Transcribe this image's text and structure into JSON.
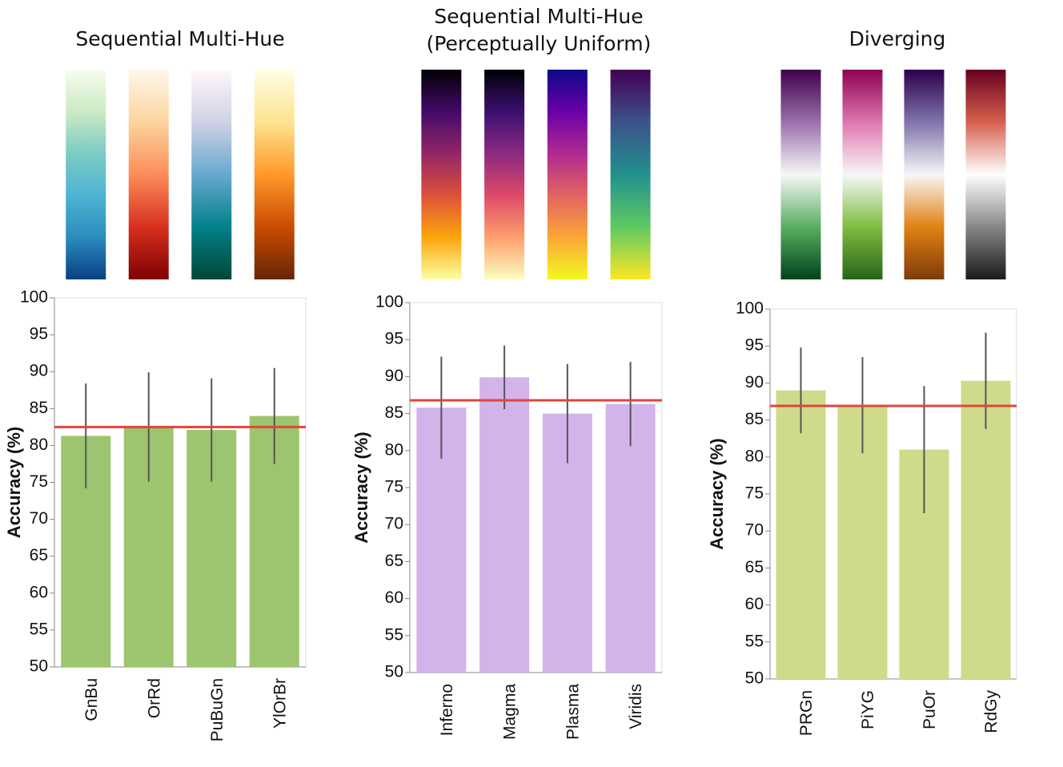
{
  "chart_data": [
    {
      "type": "bar",
      "title": "Sequential Multi-Hue",
      "y_label": "Accuracy (%)",
      "categories": [
        "GnBu",
        "OrRd",
        "PuBuGn",
        "YlOrBr"
      ],
      "values": [
        81.3,
        82.5,
        82.1,
        84.0
      ],
      "errors": [
        7.1,
        7.4,
        7.0,
        6.5
      ],
      "reference_line": 82.5,
      "reference_color": "#e0453a",
      "color": "#9dc46f",
      "swatch_colors": [
        [
          "#f7fcf0",
          "#ccebc5",
          "#7bccc4",
          "#4eb3d3",
          "#2b8cbe",
          "#084081"
        ],
        [
          "#fff7ec",
          "#fdd49e",
          "#fc8d59",
          "#d7301f",
          "#7f0000"
        ],
        [
          "#fff7fb",
          "#d0d1e6",
          "#67a9cf",
          "#02818a",
          "#014636"
        ],
        [
          "#ffffe5",
          "#fee391",
          "#fe9929",
          "#cc4c02",
          "#662506"
        ]
      ],
      "ylim": [
        50,
        100
      ],
      "yticks": [
        50,
        55,
        60,
        65,
        70,
        75,
        80,
        85,
        90,
        95,
        100
      ]
    },
    {
      "type": "bar",
      "title": "Sequential Multi-Hue",
      "subtitle": "(Perceptually Uniform)",
      "y_label": "Accuracy (%)",
      "categories": [
        "Inferno",
        "Magma",
        "Plasma",
        "Viridis"
      ],
      "values": [
        85.8,
        89.9,
        85.0,
        86.3
      ],
      "errors": [
        6.9,
        4.3,
        6.7,
        5.7
      ],
      "reference_line": 86.8,
      "reference_color": "#e0453a",
      "color": "#d2b4ea",
      "swatch_colors": [
        [
          "#000004",
          "#420a68",
          "#932667",
          "#dd513a",
          "#fca50a",
          "#fcffa4"
        ],
        [
          "#000004",
          "#3b0f70",
          "#8c2981",
          "#de4968",
          "#fe9f6d",
          "#fcfdbf"
        ],
        [
          "#0d0887",
          "#6a00a8",
          "#b12a90",
          "#e16462",
          "#fca636",
          "#f0f921"
        ],
        [
          "#440154",
          "#3b528b",
          "#21918c",
          "#5ec962",
          "#fde725"
        ]
      ],
      "ylim": [
        50,
        100
      ],
      "yticks": [
        50,
        55,
        60,
        65,
        70,
        75,
        80,
        85,
        90,
        95,
        100
      ]
    },
    {
      "type": "bar",
      "title": "Diverging",
      "y_label": "Accuracy (%)",
      "categories": [
        "PRGn",
        "PiYG",
        "PuOr",
        "RdGy"
      ],
      "values": [
        89.0,
        87.0,
        81.0,
        90.3
      ],
      "errors": [
        5.8,
        6.5,
        8.6,
        6.5
      ],
      "reference_line": 86.9,
      "reference_color": "#e0453a",
      "color": "#cddb8b",
      "swatch_colors": [
        [
          "#40004b",
          "#9970ab",
          "#f7f7f7",
          "#5aae61",
          "#00441b"
        ],
        [
          "#8e0152",
          "#de77ae",
          "#f7f7f7",
          "#7fbc41",
          "#276419"
        ],
        [
          "#2d004b",
          "#8073ac",
          "#f7f7f7",
          "#e08214",
          "#7f3b08"
        ],
        [
          "#67001f",
          "#d6604d",
          "#ffffff",
          "#878787",
          "#1a1a1a"
        ]
      ],
      "ylim": [
        50,
        100
      ],
      "yticks": [
        50,
        55,
        60,
        65,
        70,
        75,
        80,
        85,
        90,
        95,
        100
      ]
    }
  ]
}
